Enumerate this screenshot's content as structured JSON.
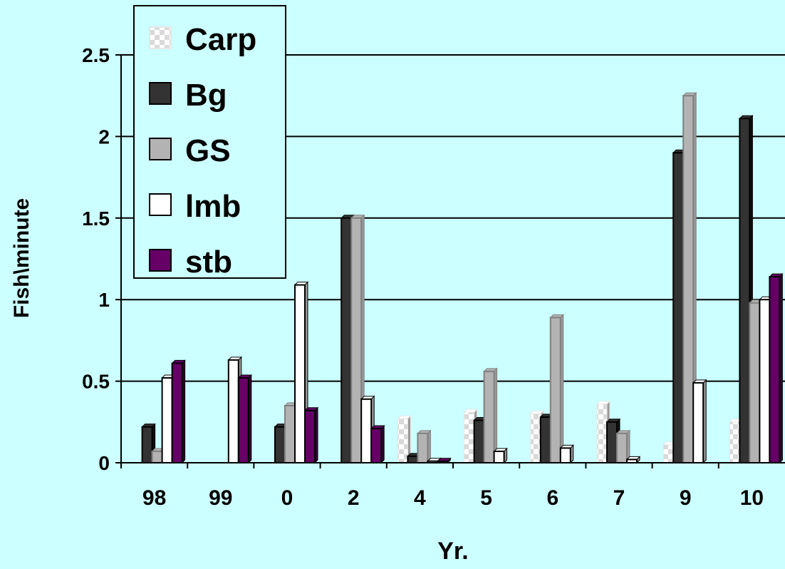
{
  "chart_data": {
    "type": "bar",
    "xlabel": "Yr.",
    "ylabel": "Fish\\minute",
    "ylim": [
      0,
      2.5
    ],
    "yticks": [
      "0",
      "0.5",
      "1",
      "1.5",
      "2",
      "2.5"
    ],
    "grid": true,
    "legend_position": "top-left",
    "categories": [
      "98",
      "99",
      "0",
      "2",
      "4",
      "5",
      "6",
      "7",
      "9",
      "10"
    ],
    "series": [
      {
        "name": "Carp",
        "color": "#ffffff",
        "values": [
          0,
          0,
          0,
          0,
          0.27,
          0.31,
          0.3,
          0.36,
          0.11,
          0.25
        ]
      },
      {
        "name": "Bg",
        "color": "#333333",
        "values": [
          0.22,
          0,
          0.22,
          1.5,
          0.04,
          0.26,
          0.28,
          0.25,
          1.9,
          2.11
        ]
      },
      {
        "name": "GS",
        "color": "#b3b3b3",
        "values": [
          0.07,
          0,
          0.35,
          1.5,
          0.18,
          0.56,
          0.89,
          0.18,
          2.25,
          0.98
        ]
      },
      {
        "name": "lmb",
        "color": "#ffffff",
        "values": [
          0.52,
          0.63,
          1.09,
          0.39,
          0.01,
          0.07,
          0.09,
          0.02,
          0.49,
          1.0
        ]
      },
      {
        "name": "stb",
        "color": "#660066",
        "values": [
          0.61,
          0.52,
          0.32,
          0.21,
          0.01,
          0.0,
          0.0,
          0.0,
          0.0,
          1.14
        ]
      }
    ]
  }
}
